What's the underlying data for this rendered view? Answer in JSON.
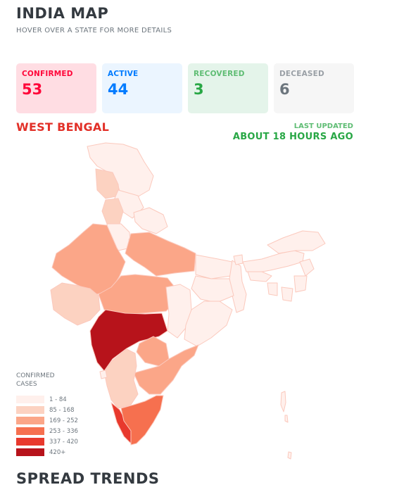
{
  "header": {
    "title": "INDIA MAP",
    "subtitle": "HOVER OVER A STATE FOR MORE DETAILS"
  },
  "stats": {
    "confirmed": {
      "label": "CONFIRMED",
      "value": "53"
    },
    "active": {
      "label": "ACTIVE",
      "value": "44"
    },
    "recovered": {
      "label": "RECOVERED",
      "value": "3"
    },
    "deceased": {
      "label": "DECEASED",
      "value": "6"
    }
  },
  "selected_state": "WEST BENGAL",
  "last_updated": {
    "label": "LAST UPDATED",
    "value": "ABOUT 18 HOURS AGO"
  },
  "legend": {
    "title_line1": "CONFIRMED",
    "title_line2": "CASES",
    "items": [
      {
        "range": "1 - 84",
        "color": "#fff0ec"
      },
      {
        "range": "85 - 168",
        "color": "#fcd2c1"
      },
      {
        "range": "169 - 252",
        "color": "#fba688"
      },
      {
        "range": "253 - 336",
        "color": "#f6704f"
      },
      {
        "range": "337 - 420",
        "color": "#e8392d"
      },
      {
        "range": "420+",
        "color": "#b7131b"
      }
    ]
  },
  "section": {
    "spread_title": "SPREAD TRENDS"
  },
  "colors": {
    "confirmed": "#ff073a",
    "active": "#007bff",
    "recovered": "#28a745",
    "deceased": "#6c757d",
    "state_border": "#fbc9bd"
  }
}
